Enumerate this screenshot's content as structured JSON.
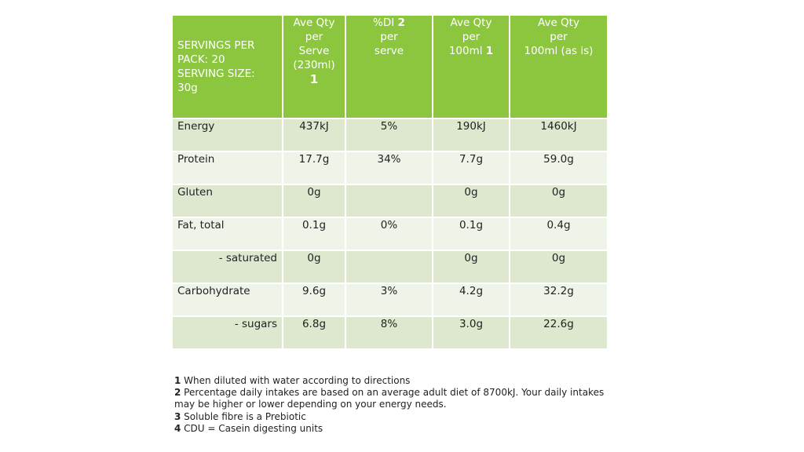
{
  "table": {
    "header": {
      "col0": [
        "SERVINGS PER",
        "PACK: 20",
        "SERVING SIZE: 30g"
      ],
      "col1": [
        "Ave Qty",
        "per",
        "Serve",
        "(230ml)"
      ],
      "col1_sup": "1",
      "col2": [
        "%DI",
        "per",
        "serve"
      ],
      "col2_sup": "2",
      "col3": [
        "Ave Qty",
        "per",
        "100ml"
      ],
      "col3_sup": "1",
      "col4": [
        "Ave Qty",
        "per",
        "100ml (as is)"
      ]
    },
    "rows": [
      {
        "label": "Energy",
        "serve": "437kJ",
        "di": "5%",
        "per100": "190kJ",
        "asis": "1460kJ"
      },
      {
        "label": "Protein",
        "serve": "17.7g",
        "di": "34%",
        "per100": "7.7g",
        "asis": "59.0g"
      },
      {
        "label": "Gluten",
        "serve": "0g",
        "di": "",
        "per100": "0g",
        "asis": "0g"
      },
      {
        "label": "Fat, total",
        "serve": "0.1g",
        "di": "0%",
        "per100": "0.1g",
        "asis": "0.4g"
      },
      {
        "label": "- saturated",
        "serve": "0g",
        "di": "",
        "per100": "0g",
        "asis": "0g"
      },
      {
        "label": "Carbohydrate",
        "serve": "9.6g",
        "di": "3%",
        "per100": "4.2g",
        "asis": "32.2g"
      },
      {
        "label": "- sugars",
        "serve": "6.8g",
        "di": "8%",
        "per100": "3.0g",
        "asis": "22.6g"
      }
    ]
  },
  "footnotes": [
    {
      "num": "1",
      "text": " When diluted with water according to directions"
    },
    {
      "num": "2",
      "text": " Percentage daily intakes are based on an average adult diet of 8700kJ. Your daily     intakes may  be higher or lower depending on your energy needs."
    },
    {
      "num": "3",
      "text": " Soluble fibre is a Prebiotic"
    },
    {
      "num": "4",
      "text": " CDU = Casein digesting units"
    }
  ],
  "colors": {
    "header_bg": "#8cc63f",
    "row_dark": "#dde8cf",
    "row_light": "#eff4e9"
  }
}
